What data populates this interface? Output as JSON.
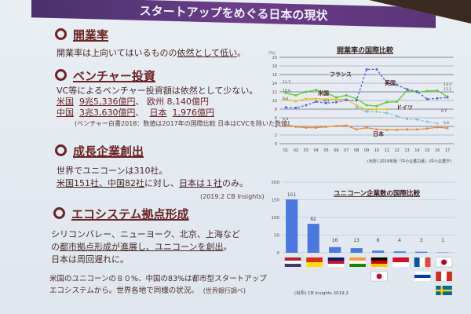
{
  "title": "スタートアップをめぐる日本の現状",
  "sections": [
    {
      "heading": "開業率",
      "lines": [
        "開業率は上向いてはいるものの",
        "依然として低い",
        "。"
      ]
    },
    {
      "heading": "ベンチャー投資",
      "lines": [
        "VC等によるベンチャー投資額は依然として少ない。",
        "米国",
        "9兆5,336億円",
        "、 欧州 8,140億円",
        "中国",
        "3兆3,630億円",
        "、",
        "日本",
        "1,976億円",
        "(ベンチャー白書2018：数値は2017年の国際比較 日本はCVCを除いた数値)"
      ]
    },
    {
      "heading": "成長企業創出",
      "lines": [
        "世界でユニコーンは310社。",
        "米国151社、中国82社",
        "に対し、",
        "日本は１社",
        "のみ。",
        "(2019.2 CB Insights)"
      ]
    },
    {
      "heading": "エコシステム拠点形成",
      "lines": [
        "シリコンバレー、ニューヨーク、北京、上海など",
        "の",
        "都市拠点形成が進展し、ユニコーンを創出",
        "。",
        "日本は周回遅れに。",
        "米国のユニコーンの８０%、中国の83%は都市型スタートアップ",
        "エコシステムから。世界各地で同様の状況。",
        "(世界銀行調べ)"
      ]
    }
  ],
  "chart_data": [
    {
      "type": "line",
      "title": "開業率の国際比較",
      "ylabel": "(%)",
      "ylim": [
        0,
        20
      ],
      "yticks": [
        0,
        2,
        4,
        6,
        8,
        10,
        12,
        14,
        16,
        18,
        20
      ],
      "grid": true,
      "categories": [
        "01",
        "02",
        "03",
        "04",
        "05",
        "06",
        "07",
        "08",
        "09",
        "10",
        "11",
        "12",
        "13",
        "14",
        "15",
        "16",
        "17"
      ],
      "source": "(出所) 2019年版「中小企業白書」(中小企業庁)",
      "series": [
        {
          "name": "英国",
          "color": "#5cc83a",
          "dash": false,
          "values": [
            11.7,
            11.2,
            12.0,
            12.4,
            11.8,
            10.7,
            11.2,
            10.4,
            8.9,
            8.7,
            9.6,
            9.7,
            12.3,
            11.9,
            12.2,
            12.3,
            10.9
          ]
        },
        {
          "name": "米国",
          "color": "#e8c21a",
          "dash": false,
          "values": [
            10.2,
            9.8,
            10.4,
            10.4,
            10.3,
            10.3,
            10.3,
            8.9,
            7.8,
            8.0,
            8.0,
            null,
            null,
            null,
            null,
            null,
            null
          ]
        },
        {
          "name": "フランス",
          "color": "#5560e0",
          "dash": true,
          "values": [
            8.4,
            8.3,
            8.9,
            9.7,
            9.4,
            9.6,
            10.1,
            10.0,
            17.2,
            17.2,
            14.1,
            13.6,
            12.6,
            12.1,
            10.3,
            10.5,
            10.7
          ]
        },
        {
          "name": "ドイツ",
          "color": "#7cc0ec",
          "dash": true,
          "values": [
            null,
            null,
            null,
            null,
            null,
            null,
            null,
            8.4,
            7.4,
            7.4,
            7.1,
            6.4,
            5.7,
            5.6,
            5.1,
            4.7,
            null
          ]
        },
        {
          "name": "日本",
          "color": "#e8883a",
          "dash": false,
          "values": [
            4.4,
            3.9,
            3.7,
            3.7,
            3.9,
            4.1,
            4.2,
            3.3,
            3.7,
            3.3,
            3.2,
            3.2,
            3.3,
            3.3,
            3.5,
            3.8,
            3.6
          ]
        }
      ],
      "data_labels": [
        "11.7",
        "10.0",
        "8.4",
        "4.4",
        "9.3",
        "13.3",
        "13.1",
        "6.7",
        "5.6"
      ]
    },
    {
      "type": "bar",
      "title": "ユニコーン企業数の国際比較",
      "ylim": [
        0,
        200
      ],
      "yticks": [
        0,
        50,
        100,
        150,
        200
      ],
      "grid": true,
      "categories": [
        "米国",
        "中国",
        "英国",
        "インド",
        "ドイツ/韓国",
        "インドネシア",
        "フランス/イスラエル",
        "日本/カナダ/スウェーデン"
      ],
      "values": [
        151,
        82,
        16,
        13,
        6,
        4,
        3,
        1
      ],
      "bar_color": "#4a78e0",
      "source": "(出所) CB Insights 2019.2"
    }
  ]
}
